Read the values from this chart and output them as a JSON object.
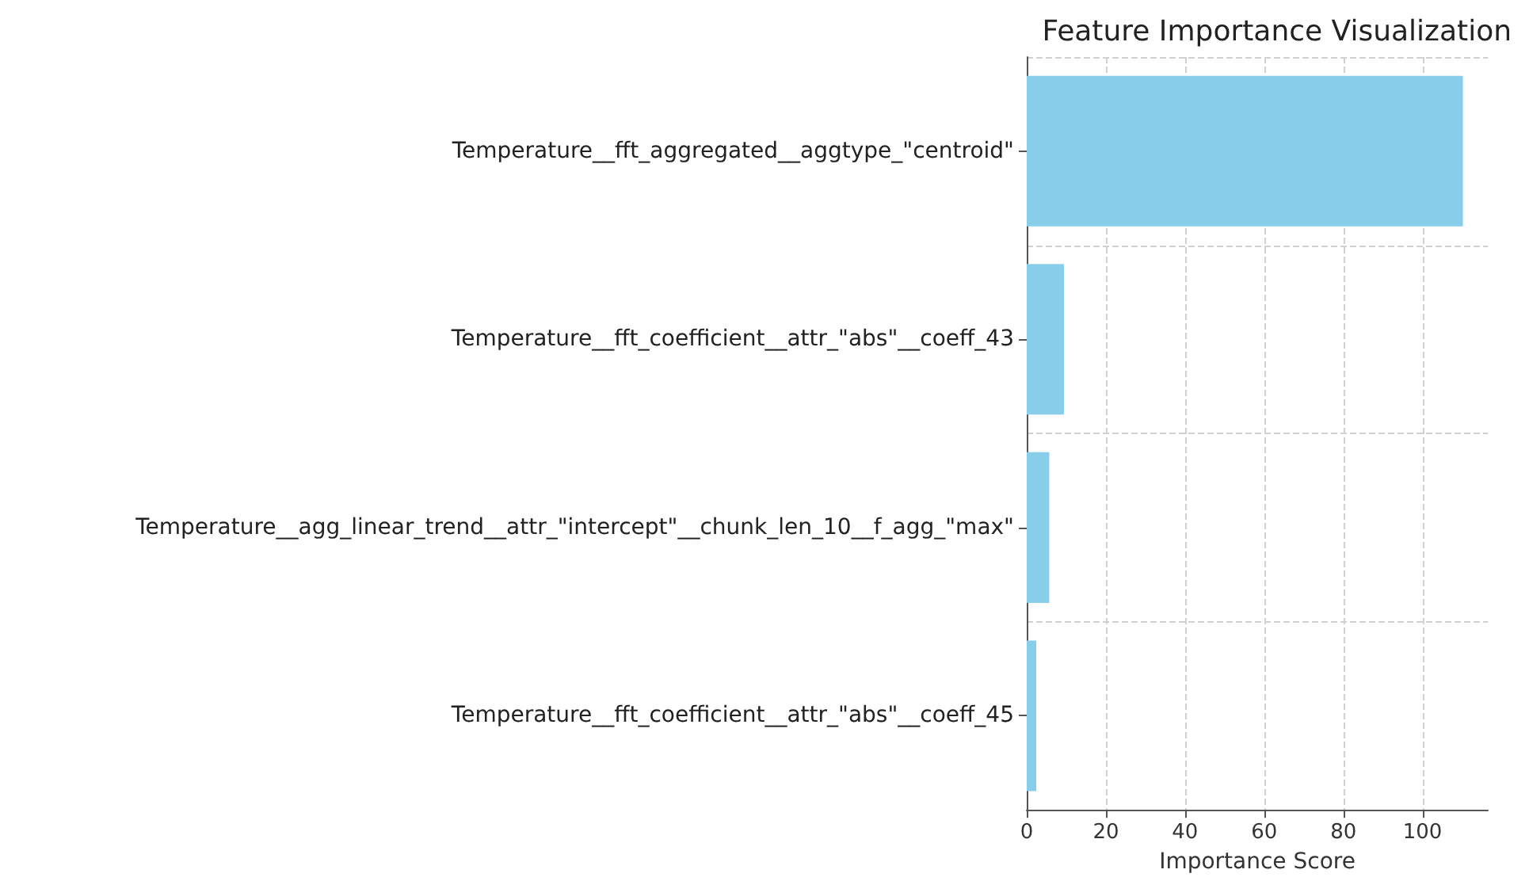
{
  "chart_data": {
    "type": "bar",
    "orientation": "horizontal",
    "title": "Feature Importance Visualization",
    "xlabel": "Importance Score",
    "categories": [
      "Temperature__fft_aggregated__aggtype_\"centroid\"",
      "Temperature__fft_coefficient__attr_\"abs\"__coeff_43",
      "Temperature__agg_linear_trend__attr_\"intercept\"__chunk_len_10__f_agg_\"max\"",
      "Temperature__fft_coefficient__attr_\"abs\"__coeff_45"
    ],
    "values": [
      110.2,
      9.4,
      5.7,
      2.4
    ],
    "color": "#87ceeb",
    "xlim": [
      0,
      116.5
    ],
    "xticks": [
      0,
      20,
      40,
      60,
      80,
      100
    ],
    "grid": true
  }
}
